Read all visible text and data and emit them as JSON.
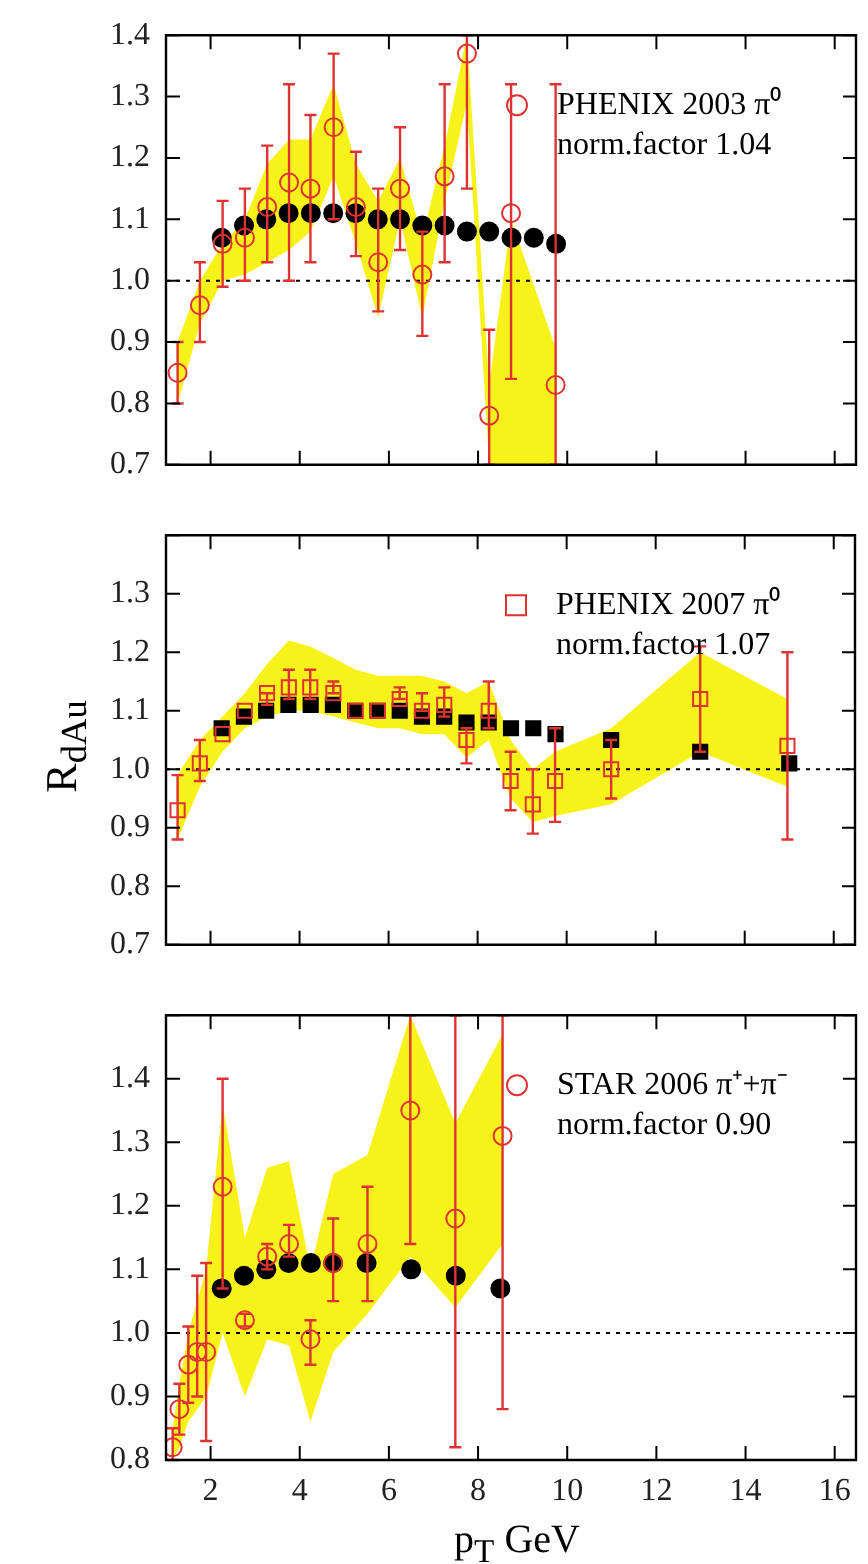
{
  "chart_data": [
    {
      "type": "scatter",
      "xlim": [
        1,
        16.5
      ],
      "xticks": [
        2,
        4,
        6,
        8,
        10,
        12,
        14,
        16
      ],
      "ylim": [
        0.7,
        1.4
      ],
      "yticks": [
        0.7,
        0.8,
        0.9,
        {
          "value": 1.0,
          "label": "1.0"
        },
        1.1,
        1.2,
        1.3,
        1.4
      ],
      "tick_labels": "y",
      "grid": false,
      "legend": "top right",
      "annotations": [
        "norm.factor 1.04"
      ],
      "ref_lines": [
        {
          "axis": "y",
          "value": 1.0,
          "line_style": "dotted",
          "color": "#000000"
        }
      ],
      "series": [
        {
          "name": "PHENIX 2003 π⁰",
          "color": "#dd3333",
          "marker": "circle",
          "x": [
            1.26,
            1.76,
            2.27,
            2.77,
            3.27,
            3.76,
            4.24,
            4.76,
            5.26,
            5.76,
            6.25,
            6.75,
            7.25,
            7.75,
            8.25,
            8.74,
            9.74
          ],
          "values": [
            0.85,
            0.96,
            1.06,
            1.07,
            1.12,
            1.16,
            1.15,
            1.25,
            1.12,
            1.03,
            1.15,
            1.01,
            1.17,
            1.37,
            0.78,
            1.11,
            0.83
          ],
          "errors": [
            [
              0.8,
              0.9
            ],
            [
              0.9,
              1.03
            ],
            [
              0.99,
              1.13
            ],
            [
              1.0,
              1.15
            ],
            [
              1.03,
              1.22
            ],
            [
              1.0,
              1.32
            ],
            [
              1.03,
              1.27
            ],
            [
              1.1,
              1.37
            ],
            [
              1.04,
              1.21
            ],
            [
              0.95,
              1.15
            ],
            [
              1.05,
              1.25
            ],
            [
              0.91,
              1.08
            ],
            [
              1.03,
              1.32
            ],
            [
              1.15,
              1.4
            ],
            [
              0.7,
              0.92
            ],
            [
              0.84,
              1.32
            ],
            [
              0.7,
              1.32
            ]
          ],
          "lower": [
            0.8,
            0.93,
            1.0,
            1.01,
            1.03,
            1.05,
            1.08,
            1.17,
            1.06,
            0.94,
            1.1,
            0.94,
            1.13,
            1.29,
            0.7,
            0.7,
            0.7
          ],
          "upper": [
            0.9,
            1.0,
            1.06,
            1.1,
            1.19,
            1.23,
            1.23,
            1.32,
            1.19,
            1.13,
            1.2,
            1.07,
            1.22,
            1.4,
            0.83,
            1.1,
            0.89
          ]
        },
        {
          "color": "#000000",
          "marker": "circle",
          "x": [
            2.25,
            2.75,
            3.25,
            3.75,
            4.25,
            4.75,
            5.25,
            5.75,
            6.25,
            6.75,
            7.25,
            7.75,
            8.25,
            8.75,
            9.25,
            9.75
          ],
          "values": [
            1.07,
            1.09,
            1.1,
            1.11,
            1.11,
            1.11,
            1.11,
            1.1,
            1.1,
            1.09,
            1.09,
            1.08,
            1.08,
            1.07,
            1.07,
            1.06
          ]
        }
      ]
    },
    {
      "type": "scatter",
      "xlim": [
        1,
        16.5
      ],
      "xticks": [
        2,
        4,
        6,
        8,
        10,
        12,
        14,
        16
      ],
      "ylim": [
        0.7,
        1.4
      ],
      "yticks": [
        0.7,
        0.8,
        0.9,
        {
          "value": 1.0,
          "label": "1.0"
        },
        1.1,
        1.2,
        1.3,
        {
          "value": 1.4,
          "label": null
        }
      ],
      "tick_labels": "y",
      "grid": false,
      "legend": "top right",
      "ylabel": "R$_{dAu}$",
      "annotations": [
        "norm.factor 1.07"
      ],
      "ref_lines": [
        {
          "axis": "y",
          "value": 1.0,
          "line_style": "dotted",
          "color": "#000000"
        }
      ],
      "series": [
        {
          "name": "PHENIX 2007 π⁰",
          "color": "#dd3333",
          "marker": "square",
          "x": [
            1.26,
            1.76,
            2.27,
            2.77,
            3.27,
            3.76,
            4.24,
            4.76,
            5.26,
            5.76,
            6.25,
            6.75,
            7.25,
            7.75,
            8.25,
            8.74,
            9.24,
            9.74,
            11.0,
            13.0,
            14.96
          ],
          "values": [
            0.93,
            1.01,
            1.06,
            1.1,
            1.13,
            1.14,
            1.14,
            1.13,
            1.1,
            1.1,
            1.12,
            1.1,
            1.11,
            1.05,
            1.1,
            0.98,
            0.94,
            0.98,
            1.0,
            1.12,
            1.04
          ],
          "errors": [
            [
              0.88,
              0.99
            ],
            [
              0.98,
              1.05
            ],
            null,
            null,
            [
              1.11,
              1.13
            ],
            [
              1.12,
              1.17
            ],
            [
              1.12,
              1.17
            ],
            [
              1.13,
              1.15
            ],
            null,
            null,
            [
              1.12,
              1.14
            ],
            [
              1.1,
              1.13
            ],
            [
              1.09,
              1.14
            ],
            [
              1.01,
              1.07
            ],
            [
              1.07,
              1.15
            ],
            [
              0.93,
              1.03
            ],
            [
              0.89,
              1.0
            ],
            [
              0.91,
              1.07
            ],
            [
              0.95,
              1.05
            ],
            [
              1.03,
              1.21
            ],
            [
              0.88,
              1.2
            ]
          ],
          "lower": [
            0.88,
            0.97,
            1.03,
            1.07,
            1.09,
            1.1,
            1.1,
            1.09,
            1.08,
            1.07,
            1.07,
            1.06,
            1.06,
            1.02,
            1.05,
            0.95,
            0.91,
            0.92,
            0.94,
            1.03,
            0.97
          ],
          "upper": [
            0.99,
            1.05,
            1.09,
            1.13,
            1.18,
            1.22,
            1.21,
            1.19,
            1.17,
            1.16,
            1.16,
            1.16,
            1.15,
            1.13,
            1.15,
            1.05,
            1.0,
            1.03,
            1.07,
            1.2,
            1.12
          ]
        },
        {
          "color": "#000000",
          "marker": "square",
          "x": [
            2.25,
            2.75,
            3.25,
            3.75,
            4.25,
            4.75,
            5.25,
            5.75,
            6.25,
            6.75,
            7.25,
            7.75,
            8.25,
            8.75,
            9.25,
            9.75,
            11.0,
            13.0,
            15.0
          ],
          "values": [
            1.07,
            1.09,
            1.1,
            1.11,
            1.11,
            1.11,
            1.1,
            1.1,
            1.1,
            1.09,
            1.09,
            1.08,
            1.08,
            1.07,
            1.07,
            1.06,
            1.05,
            1.03,
            1.01
          ]
        }
      ]
    },
    {
      "type": "scatter",
      "xlim": [
        1,
        16.5
      ],
      "xticks": [
        2,
        4,
        6,
        8,
        10,
        12,
        14,
        16
      ],
      "ylim": [
        0.8,
        1.5
      ],
      "yticks": [
        0.8,
        0.9,
        {
          "value": 1.0,
          "label": "1.0"
        },
        1.1,
        1.2,
        1.3,
        1.4,
        {
          "value": 1.5,
          "label": null
        }
      ],
      "grid": false,
      "legend": "top right",
      "xlabel": "p$_{T}$ GeV",
      "annotations": [
        "norm.factor 0.90"
      ],
      "ref_lines": [
        {
          "axis": "y",
          "value": 1.0,
          "line_style": "dotted",
          "color": "#000000"
        }
      ],
      "series": [
        {
          "name": "STAR 2006 π⁺+π⁻",
          "color": "#dd3333",
          "marker": "circle",
          "x": [
            1.15,
            1.3,
            1.5,
            1.7,
            1.9,
            2.27,
            2.77,
            3.27,
            3.76,
            4.24,
            4.75,
            5.52,
            6.48,
            7.49,
            8.55
          ],
          "values": [
            0.82,
            0.88,
            0.95,
            0.97,
            0.97,
            1.23,
            1.02,
            1.12,
            1.14,
            0.99,
            1.11,
            1.14,
            1.35,
            1.18,
            1.31
          ],
          "errors": [
            [
              0.8,
              0.85
            ],
            [
              0.84,
              0.92
            ],
            [
              0.89,
              1.01
            ],
            [
              0.9,
              1.09
            ],
            [
              0.83,
              1.11
            ],
            [
              1.07,
              1.4
            ],
            [
              1.01,
              1.03
            ],
            [
              1.1,
              1.14
            ],
            [
              1.12,
              1.17
            ],
            [
              0.95,
              1.02
            ],
            [
              1.05,
              1.18
            ],
            [
              1.05,
              1.23
            ],
            [
              1.14,
              1.5
            ],
            [
              0.82,
              1.5
            ],
            [
              0.88,
              1.5
            ]
          ],
          "lower": [
            0.8,
            0.82,
            0.86,
            0.88,
            0.9,
            1.0,
            0.9,
            0.99,
            0.98,
            0.86,
            0.97,
            1.03,
            1.12,
            1.04,
            1.14
          ],
          "upper": [
            0.85,
            0.92,
            1.0,
            1.05,
            1.1,
            1.36,
            1.15,
            1.26,
            1.27,
            1.1,
            1.25,
            1.28,
            1.5,
            1.33,
            1.47
          ]
        },
        {
          "color": "#000000",
          "marker": "circle",
          "x": [
            2.25,
            2.75,
            3.25,
            3.75,
            4.25,
            4.75,
            5.5,
            6.5,
            7.5,
            8.5
          ],
          "values": [
            1.07,
            1.09,
            1.1,
            1.11,
            1.11,
            1.11,
            1.11,
            1.1,
            1.09,
            1.07
          ]
        }
      ]
    }
  ]
}
